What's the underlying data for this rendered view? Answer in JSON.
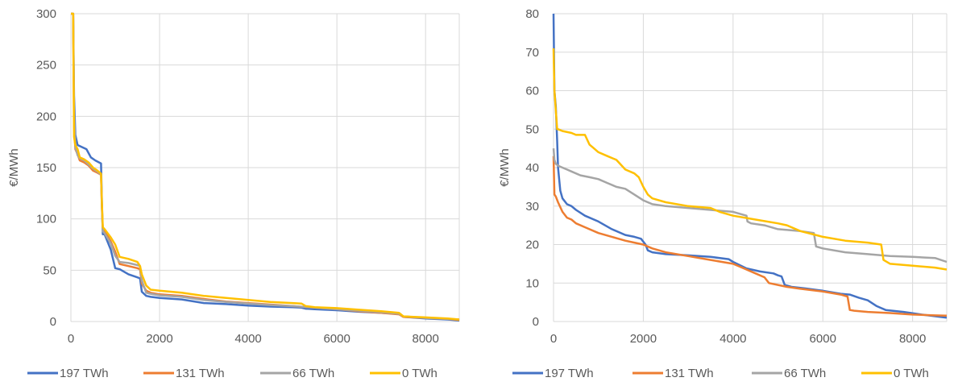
{
  "chart_data": [
    {
      "type": "line",
      "title": "",
      "xlabel": "",
      "ylabel": "€/MWh",
      "xlim": [
        0,
        8760
      ],
      "ylim": [
        0,
        300
      ],
      "xticks": [
        0,
        2000,
        4000,
        6000,
        8000
      ],
      "yticks": [
        0,
        50,
        100,
        150,
        200,
        250,
        300
      ],
      "xtick_labels": [
        "0",
        "2000",
        "4000",
        "6000",
        "8000"
      ],
      "ytick_labels": [
        "0",
        "50",
        "100",
        "150",
        "200",
        "250",
        "300"
      ],
      "grid": "vertical and horizontal",
      "legend_position": "bottom",
      "series": [
        {
          "name": "197 TWh",
          "color": "#4472C4",
          "x": [
            0,
            50,
            70,
            100,
            150,
            200,
            350,
            450,
            550,
            680,
            700,
            720,
            760,
            900,
            1000,
            1100,
            1300,
            1500,
            1560,
            1600,
            1700,
            1800,
            2000,
            2500,
            3000,
            3500,
            4000,
            4500,
            5000,
            5200,
            5300,
            5500,
            6000,
            6500,
            7000,
            7400,
            7500,
            8000,
            8500,
            8760
          ],
          "y": [
            300,
            300,
            220,
            182,
            172,
            171,
            168,
            160,
            157,
            154,
            115,
            85,
            85,
            70,
            52,
            51,
            46,
            43,
            42,
            29,
            25,
            24,
            23,
            21.5,
            18,
            17,
            15.5,
            14.5,
            14,
            13.5,
            12.5,
            12,
            11,
            9.5,
            8.5,
            7.5,
            4.5,
            3,
            2,
            1
          ]
        },
        {
          "name": "131 TWh",
          "color": "#ED7D31",
          "x": [
            0,
            50,
            70,
            100,
            150,
            200,
            300,
            400,
            500,
            600,
            680,
            700,
            720,
            760,
            900,
            1000,
            1100,
            1300,
            1500,
            1560,
            1600,
            1700,
            1800,
            2000,
            2500,
            3000,
            3500,
            4000,
            4500,
            5000,
            5500,
            6000,
            6500,
            7000,
            7400,
            7500,
            8000,
            8500,
            8760
          ],
          "y": [
            300,
            300,
            190,
            168,
            163,
            157,
            155,
            152,
            147,
            145,
            143,
            110,
            90,
            88,
            78,
            68,
            56,
            54,
            52,
            51,
            37,
            30,
            28,
            26.5,
            25,
            22,
            19.5,
            18,
            16.5,
            15,
            13.5,
            12,
            10,
            8.5,
            7,
            4.5,
            3.5,
            2.5,
            1.5
          ]
        },
        {
          "name": "66 TWh",
          "color": "#A5A5A5",
          "x": [
            0,
            50,
            70,
            100,
            150,
            200,
            300,
            400,
            500,
            600,
            680,
            700,
            720,
            760,
            900,
            1000,
            1100,
            1300,
            1500,
            1560,
            1600,
            1700,
            1800,
            2000,
            2500,
            3000,
            3500,
            4000,
            4500,
            5000,
            5500,
            6000,
            6500,
            7000,
            7400,
            7500,
            8000,
            8500,
            8760
          ],
          "y": [
            300,
            300,
            205,
            170,
            162,
            159,
            157,
            153,
            149,
            146,
            143,
            112,
            88,
            86,
            76,
            64,
            58,
            57,
            55,
            54,
            40,
            28,
            27,
            25.5,
            24,
            21,
            19,
            17.5,
            16,
            15,
            13.5,
            12,
            10.5,
            9,
            7.5,
            5,
            3.5,
            2.5,
            2
          ]
        },
        {
          "name": "0 TWh",
          "color": "#FFC000",
          "x": [
            0,
            50,
            70,
            100,
            150,
            200,
            300,
            400,
            500,
            600,
            680,
            700,
            720,
            760,
            900,
            1000,
            1100,
            1300,
            1500,
            1560,
            1600,
            1700,
            1800,
            2000,
            2500,
            3000,
            3500,
            4000,
            4500,
            5000,
            5200,
            5300,
            5500,
            6000,
            6500,
            7000,
            7400,
            7500,
            8000,
            8500,
            8760
          ],
          "y": [
            300,
            300,
            180,
            172,
            168,
            160,
            158,
            155,
            150,
            147,
            144,
            115,
            92,
            90,
            82,
            75,
            63,
            61,
            58,
            54,
            46,
            35,
            31,
            30,
            28,
            25,
            23,
            21,
            19,
            18,
            17.5,
            15,
            14,
            13,
            11.5,
            10,
            8.5,
            5,
            4,
            3,
            2
          ]
        }
      ]
    },
    {
      "type": "line",
      "title": "",
      "xlabel": "",
      "ylabel": "€/MWh",
      "xlim": [
        0,
        8760
      ],
      "ylim": [
        0,
        80
      ],
      "xticks": [
        0,
        2000,
        4000,
        6000,
        8000
      ],
      "yticks": [
        0,
        10,
        20,
        30,
        40,
        50,
        60,
        70,
        80
      ],
      "xtick_labels": [
        "0",
        "2000",
        "4000",
        "6000",
        "8000"
      ],
      "ytick_labels": [
        "0",
        "10",
        "20",
        "30",
        "40",
        "50",
        "60",
        "70",
        "80"
      ],
      "grid": "vertical and horizontal",
      "legend_position": "bottom",
      "series": [
        {
          "name": "197 TWh",
          "color": "#4472C4",
          "x": [
            0,
            20,
            50,
            80,
            100,
            150,
            200,
            300,
            400,
            500,
            700,
            1000,
            1300,
            1600,
            1800,
            1950,
            2050,
            2100,
            2200,
            2500,
            3000,
            3500,
            3900,
            4000,
            4300,
            4600,
            4900,
            5000,
            5080,
            5150,
            5300,
            5600,
            6000,
            6400,
            6600,
            6800,
            7000,
            7200,
            7400,
            7800,
            8200,
            8760
          ],
          "y": [
            80,
            60,
            56,
            47,
            40,
            34,
            32,
            30.5,
            30,
            29,
            27.5,
            26,
            24,
            22.5,
            22,
            21.5,
            20,
            18.5,
            18,
            17.5,
            17.2,
            16.8,
            16.2,
            15.5,
            13.8,
            13,
            12.5,
            12,
            11.7,
            9.5,
            9,
            8.6,
            8,
            7.2,
            7,
            6.2,
            5.5,
            4,
            3,
            2.5,
            1.8,
            1
          ]
        },
        {
          "name": "131 TWh",
          "color": "#ED7D31",
          "x": [
            0,
            20,
            50,
            100,
            200,
            300,
            400,
            500,
            700,
            1000,
            1300,
            1600,
            1800,
            2000,
            2200,
            2500,
            3000,
            3500,
            4000,
            4200,
            4500,
            4700,
            4800,
            5000,
            5200,
            5500,
            6000,
            6400,
            6550,
            6600,
            6700,
            7000,
            7500,
            8000,
            8500,
            8760
          ],
          "y": [
            43,
            33,
            32.5,
            31,
            28.5,
            27,
            26.5,
            25.5,
            24.5,
            23,
            22,
            21,
            20.5,
            20,
            19,
            18,
            17,
            16,
            15,
            14,
            12.5,
            11.5,
            10,
            9.5,
            9,
            8.5,
            7.8,
            7,
            6.5,
            3,
            2.8,
            2.5,
            2.2,
            1.8,
            1.6,
            1.5
          ]
        },
        {
          "name": "66 TWh",
          "color": "#A5A5A5",
          "x": [
            0,
            20,
            50,
            100,
            200,
            300,
            400,
            600,
            800,
            1000,
            1200,
            1400,
            1600,
            1800,
            2000,
            2100,
            2200,
            2500,
            3000,
            3500,
            4000,
            4300,
            4320,
            4400,
            4700,
            5000,
            5500,
            5800,
            5850,
            6000,
            6500,
            7000,
            7500,
            8000,
            8500,
            8760
          ],
          "y": [
            45,
            42,
            41,
            40.5,
            40,
            39.5,
            39,
            38,
            37.5,
            37,
            36,
            35,
            34.5,
            33,
            31.5,
            31,
            30.5,
            30,
            29.5,
            29,
            28.5,
            27.5,
            26,
            25.5,
            25,
            24,
            23.5,
            23,
            19.5,
            19,
            18,
            17.5,
            17,
            16.8,
            16.5,
            15.5
          ]
        },
        {
          "name": "0 TWh",
          "color": "#FFC000",
          "x": [
            0,
            20,
            50,
            80,
            100,
            200,
            400,
            500,
            700,
            800,
            900,
            1000,
            1200,
            1400,
            1600,
            1800,
            1900,
            2000,
            2100,
            2200,
            2500,
            3000,
            3500,
            3700,
            4000,
            4500,
            5000,
            5200,
            5500,
            6000,
            6500,
            7000,
            7300,
            7350,
            7500,
            8000,
            8500,
            8760
          ],
          "y": [
            71,
            60,
            55,
            50,
            50,
            49.5,
            49,
            48.5,
            48.5,
            46,
            45,
            44,
            43,
            42,
            39.5,
            38.5,
            37.5,
            35,
            33,
            32,
            31,
            30,
            29.5,
            28.5,
            27.5,
            26.5,
            25.5,
            25,
            23.5,
            22,
            21,
            20.5,
            20,
            16,
            15,
            14.5,
            14,
            13.5
          ]
        }
      ]
    }
  ]
}
